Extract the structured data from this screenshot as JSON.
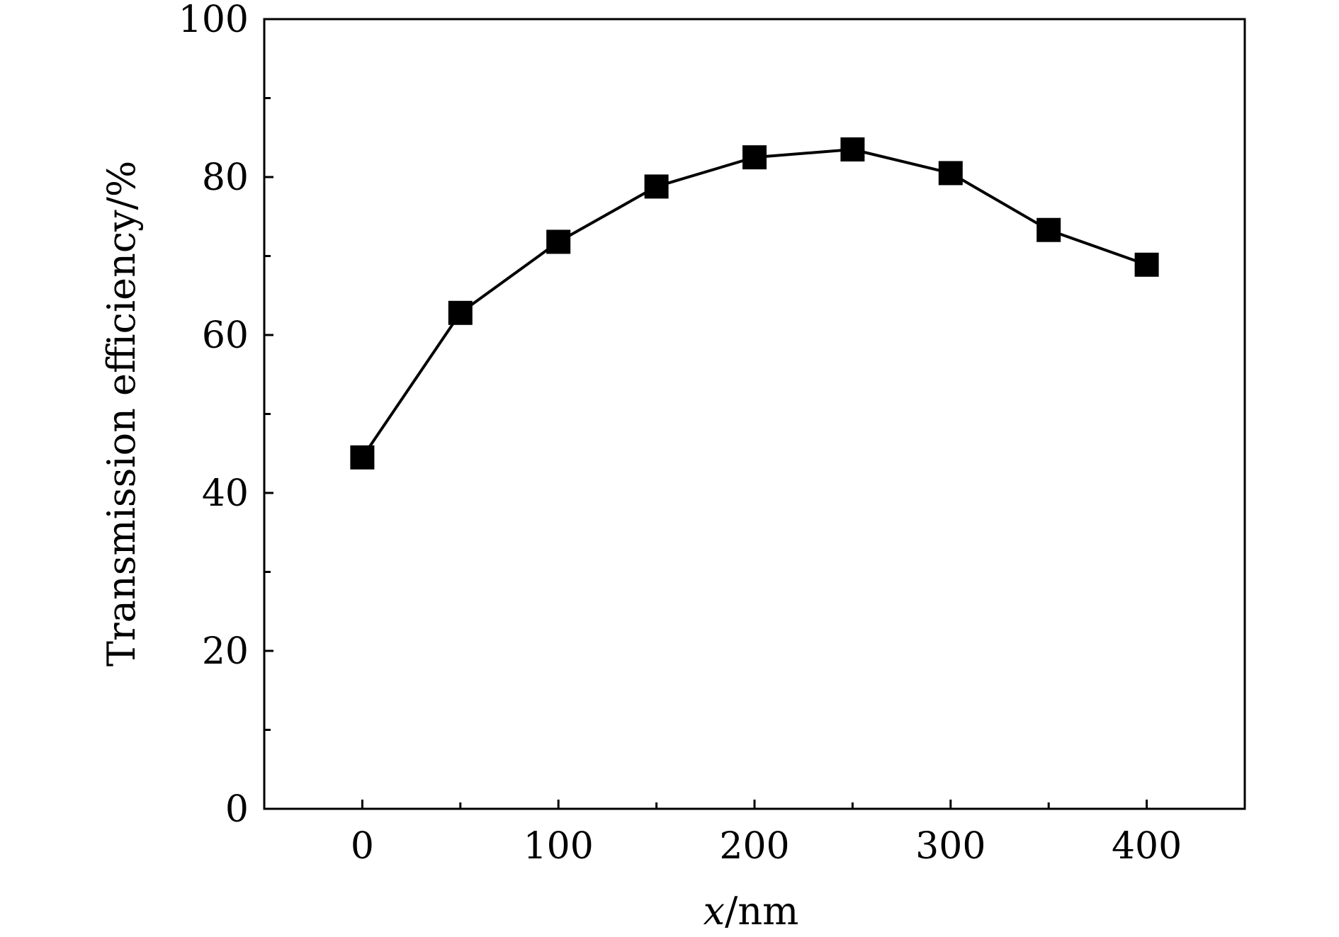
{
  "chart_data": {
    "type": "line",
    "title": "",
    "xlabel": {
      "var": "x",
      "unit": "/nm"
    },
    "ylabel": "Transmission efficiency/%",
    "xlim": [
      -50,
      450
    ],
    "ylim": [
      0,
      100
    ],
    "x_ticks": [
      0,
      100,
      200,
      300,
      400
    ],
    "x_minor_ticks": [
      50,
      150,
      250,
      350
    ],
    "y_ticks": [
      0,
      20,
      40,
      60,
      80,
      100
    ],
    "y_minor_ticks": [
      10,
      30,
      50,
      70,
      90
    ],
    "x_tick_labels": [
      "0",
      "100",
      "200",
      "300",
      "400"
    ],
    "y_tick_labels": [
      "0",
      "20",
      "40",
      "60",
      "80",
      "100"
    ],
    "grid": false,
    "legend": "none",
    "series": [
      {
        "marker": "filled-square",
        "color": "#000000",
        "x": [
          0,
          50,
          100,
          150,
          200,
          250,
          300,
          350,
          400
        ],
        "y": [
          44.5,
          62.8,
          71.8,
          78.8,
          82.5,
          83.5,
          80.5,
          73.3,
          68.9
        ]
      }
    ]
  }
}
